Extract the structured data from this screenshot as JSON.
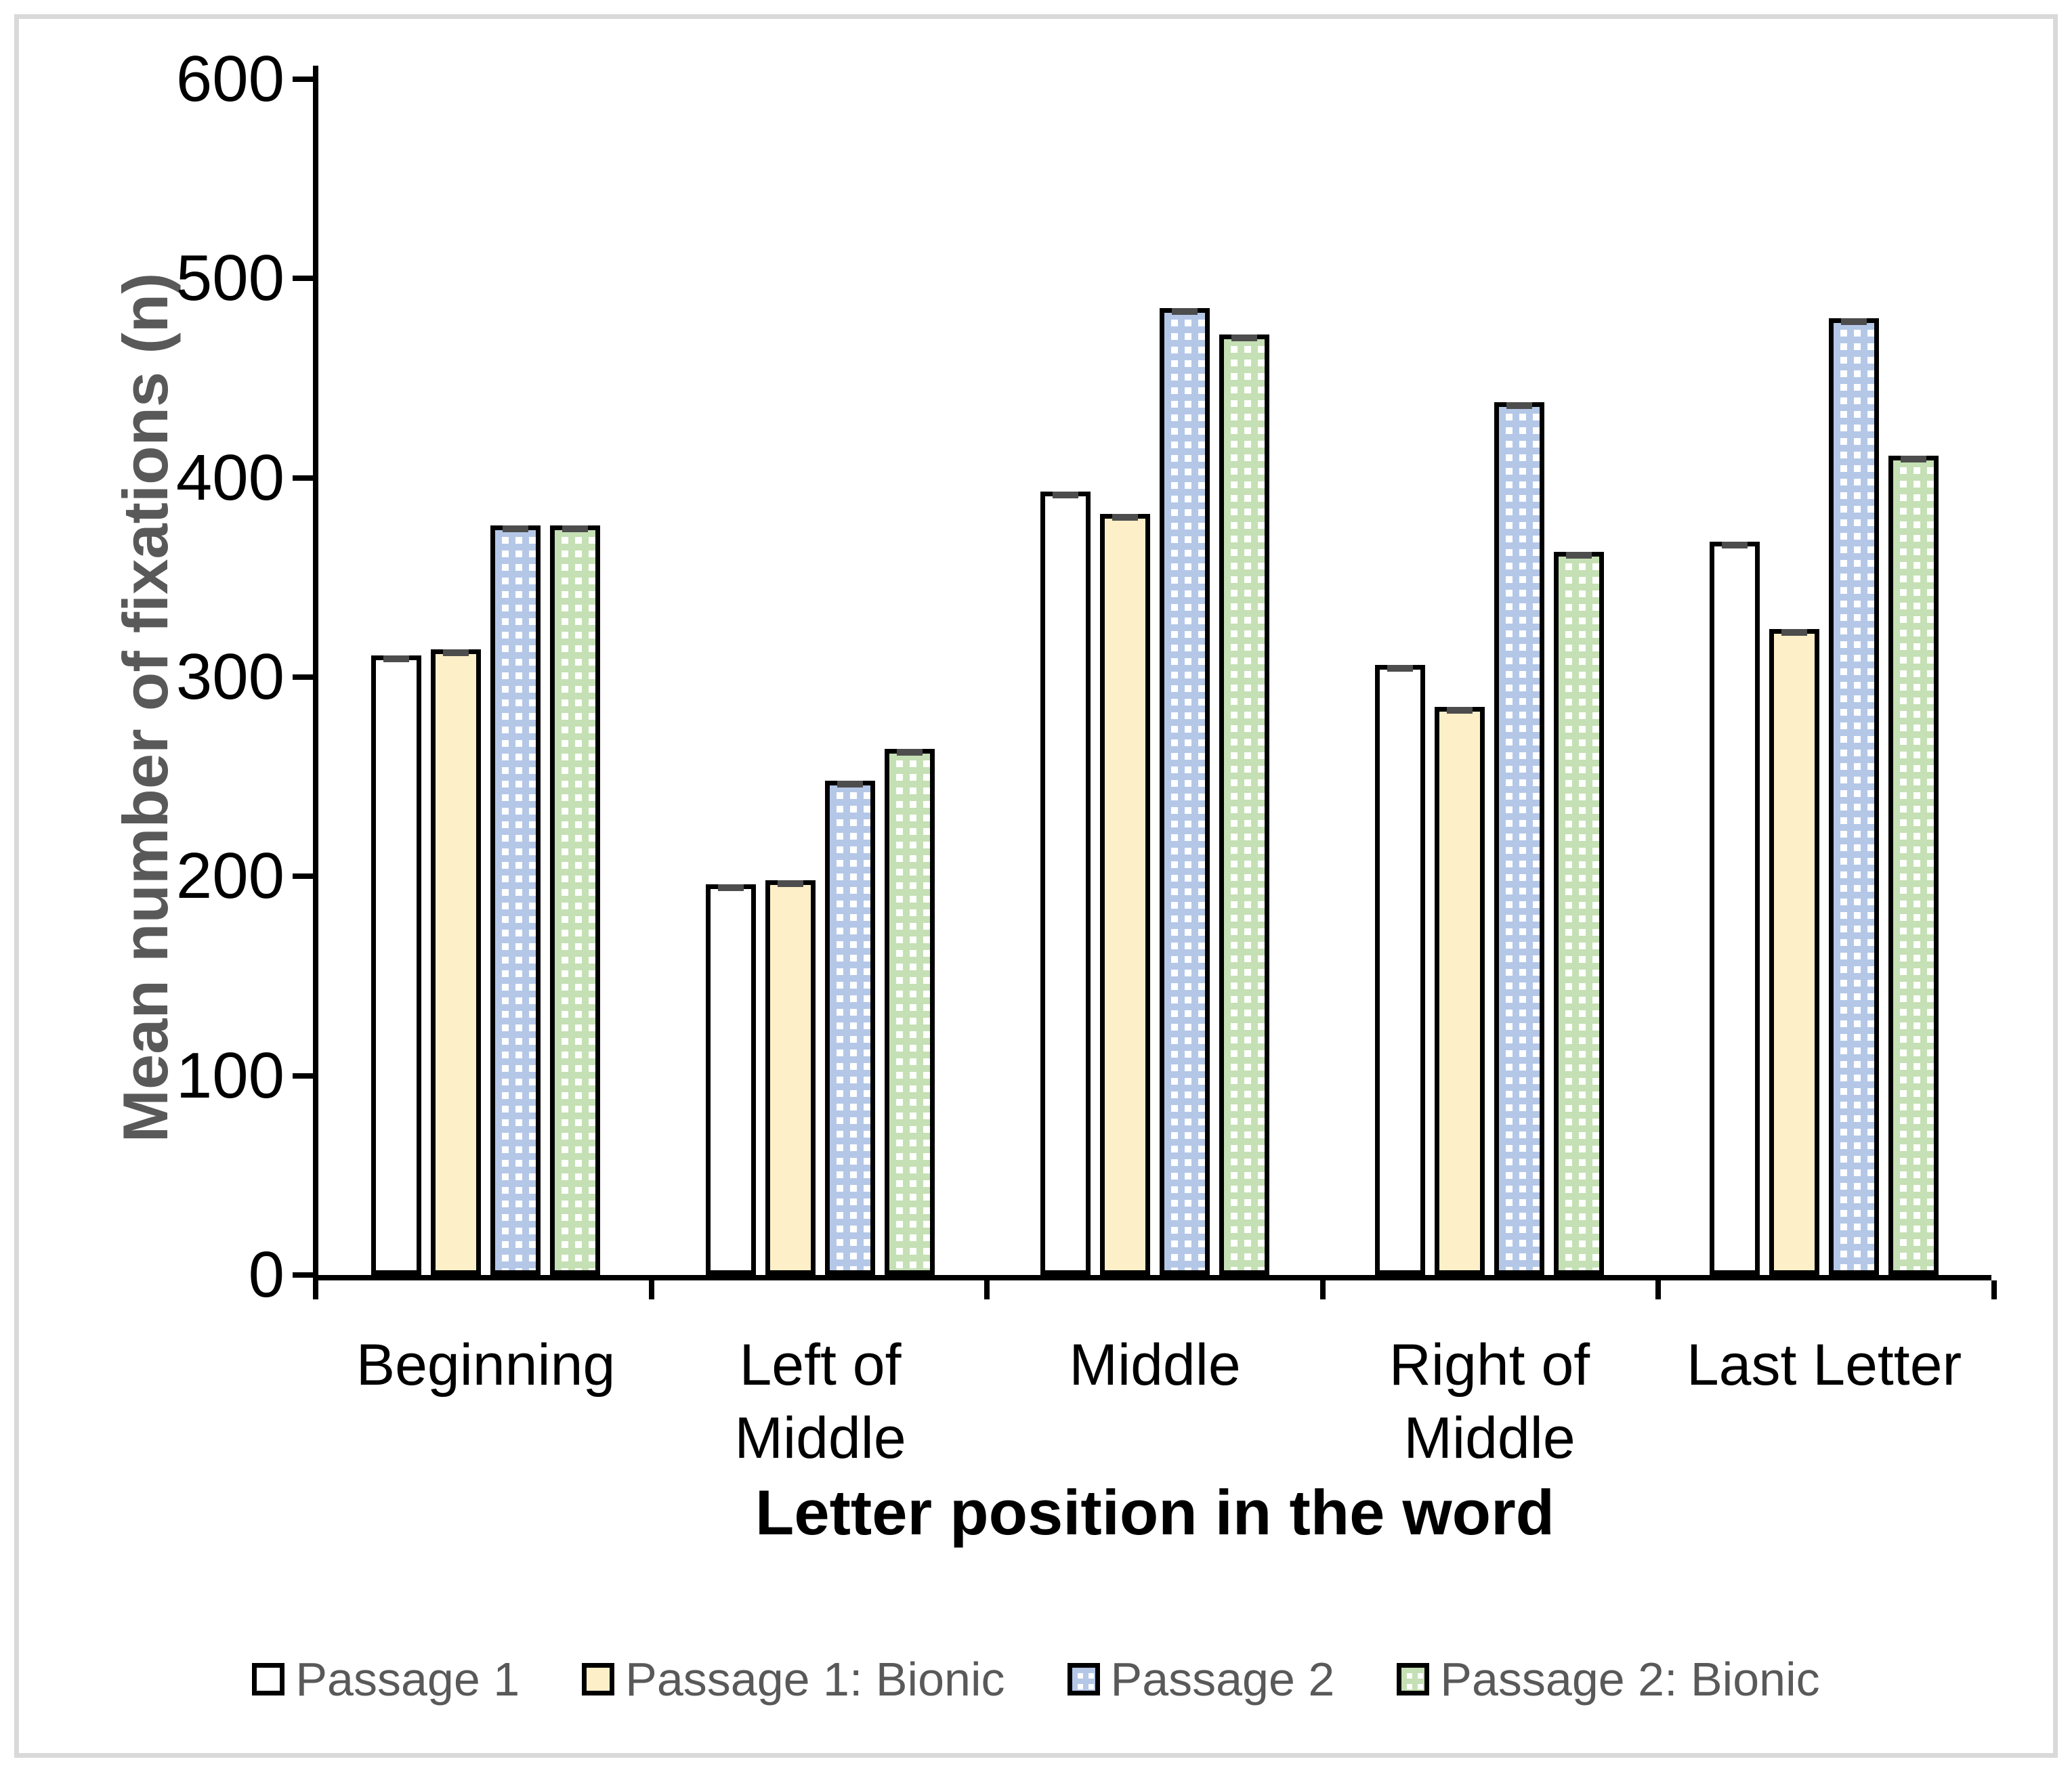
{
  "figure": {
    "frame_color": "#D9D9D9",
    "background": "#FFFFFF"
  },
  "chart_data": {
    "type": "bar",
    "categories": [
      "Beginning",
      "Left of Middle",
      "Middle",
      "Right of Middle",
      "Last Letter"
    ],
    "categories_display": [
      "Beginning",
      "Left of Middle",
      "Middle",
      "Right of\nMiddle",
      "Last Letter"
    ],
    "series": [
      {
        "name": "Passage 1",
        "fill": "solid",
        "color": "#FFFFFF",
        "values": [
          311,
          196,
          393,
          306,
          368
        ]
      },
      {
        "name": "Passage 1: Bionic",
        "fill": "solid",
        "color": "#FDEFC8",
        "values": [
          314,
          198,
          382,
          285,
          324
        ]
      },
      {
        "name": "Passage 2",
        "fill": "pattern",
        "color": "#B4C7E7",
        "values": [
          376,
          248,
          485,
          438,
          480
        ]
      },
      {
        "name": "Passage 2: Bionic",
        "fill": "pattern",
        "color": "#C5E0B4",
        "values": [
          376,
          264,
          472,
          363,
          411
        ]
      }
    ],
    "xlabel": "Letter position in the word",
    "ylabel": "Mean number of fixations (n)",
    "ylim": [
      0,
      600
    ],
    "ytick_step": 100,
    "yticks": [
      "0",
      "100",
      "200",
      "300",
      "400",
      "500",
      "600"
    ],
    "grid": false,
    "legend_position": "bottom",
    "colors": {
      "bar_border": "#000000",
      "axis": "#000000",
      "error_cap": "#4D4D4D",
      "tick_label": "#000000",
      "ylabel_text": "#595959",
      "xlabel_text": "#000000",
      "legend_text": "#595959"
    }
  }
}
